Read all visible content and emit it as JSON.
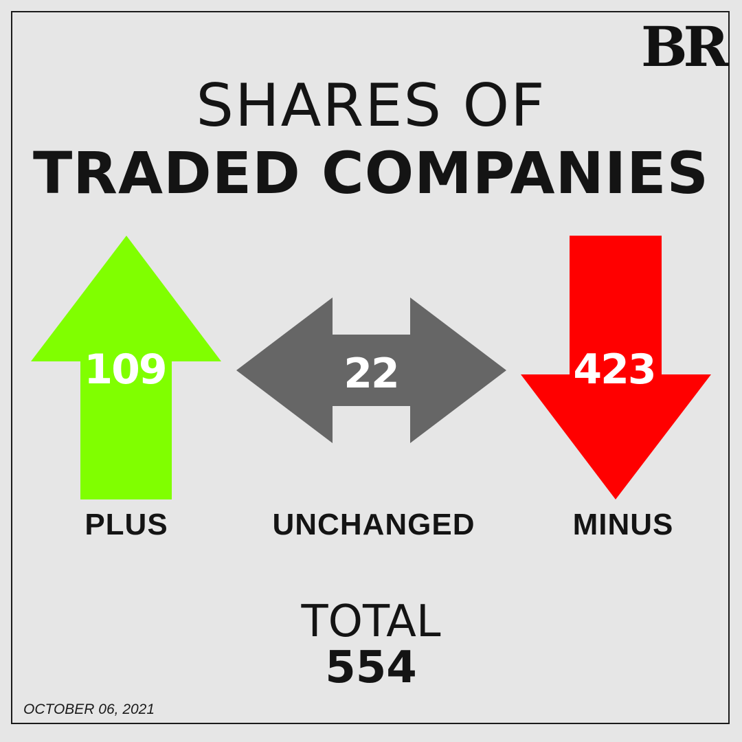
{
  "brand": {
    "logo_text": "BR"
  },
  "title": {
    "line1": "SHARES OF",
    "line2": "TRADED COMPANIES"
  },
  "stats": [
    {
      "key": "plus",
      "label": "PLUS",
      "value": "109",
      "color": "#80ff00",
      "icon": "up-arrow-icon"
    },
    {
      "key": "unchanged",
      "label": "UNCHANGED",
      "value": "22",
      "color": "#666666",
      "icon": "left-right-arrow-icon"
    },
    {
      "key": "minus",
      "label": "MINUS",
      "value": "423",
      "color": "#ff0000",
      "icon": "down-arrow-icon"
    }
  ],
  "total": {
    "label": "TOTAL",
    "value": "554"
  },
  "date": "OCTOBER 06, 2021"
}
